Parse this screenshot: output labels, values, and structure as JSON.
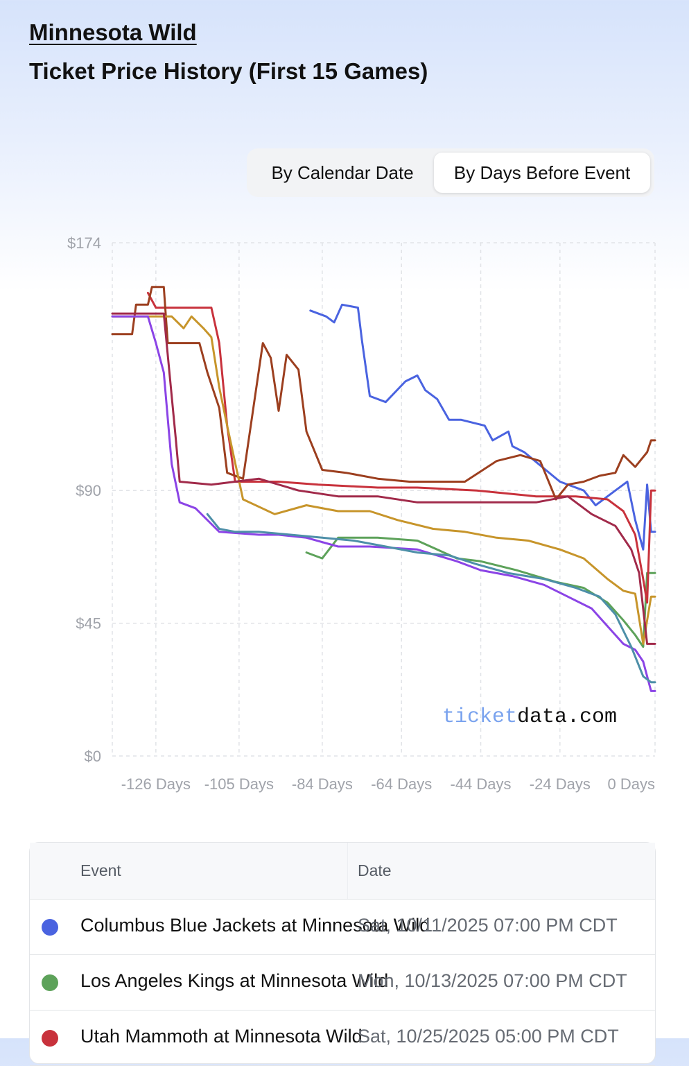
{
  "header": {
    "team_name": "Minnesota Wild",
    "title": "Ticket Price History (First 15 Games)"
  },
  "toggle": {
    "options": [
      "By Calendar Date",
      "By Days Before Event"
    ],
    "selected": "By Days Before Event"
  },
  "watermark": {
    "part1": "ticket",
    "part2": "data.com"
  },
  "chart_data": {
    "type": "line",
    "xlabel": "",
    "ylabel": "",
    "x_unit": "days before event",
    "xlim": [
      -137,
      0
    ],
    "ylim": [
      0,
      174
    ],
    "y_ticks": [
      {
        "value": 174,
        "label": "$174"
      },
      {
        "value": 90,
        "label": "$90"
      },
      {
        "value": 45,
        "label": "$45"
      },
      {
        "value": 0,
        "label": "$0"
      }
    ],
    "x_ticks": [
      {
        "value": -126,
        "label": "-126 Days"
      },
      {
        "value": -105,
        "label": "-105 Days"
      },
      {
        "value": -84,
        "label": "-84 Days"
      },
      {
        "value": -64,
        "label": "-64 Days"
      },
      {
        "value": -44,
        "label": "-44 Days"
      },
      {
        "value": -24,
        "label": "-24 Days"
      },
      {
        "value": 0,
        "label": "0 Days"
      }
    ],
    "grid": true,
    "series": [
      {
        "color": "#4a63e0",
        "points": [
          [
            -87,
            151
          ],
          [
            -83,
            149
          ],
          [
            -81,
            147
          ],
          [
            -79,
            153
          ],
          [
            -75,
            152
          ],
          [
            -74,
            141
          ],
          [
            -72,
            122
          ],
          [
            -68,
            120
          ],
          [
            -63,
            127
          ],
          [
            -60,
            129
          ],
          [
            -58,
            124
          ],
          [
            -55,
            121
          ],
          [
            -52,
            114
          ],
          [
            -49,
            114
          ],
          [
            -43,
            112
          ],
          [
            -41,
            107
          ],
          [
            -37,
            110
          ],
          [
            -36,
            105
          ],
          [
            -33,
            103
          ],
          [
            -24,
            93
          ],
          [
            -18,
            90
          ],
          [
            -15,
            85
          ],
          [
            -10,
            90
          ],
          [
            -7,
            93
          ],
          [
            -5,
            80
          ],
          [
            -3,
            70
          ],
          [
            -2,
            92
          ],
          [
            -1,
            76
          ],
          [
            0,
            76
          ]
        ]
      },
      {
        "color": "#5da25a",
        "points": [
          [
            -88,
            69
          ],
          [
            -84,
            67
          ],
          [
            -80,
            74
          ],
          [
            -70,
            74
          ],
          [
            -60,
            73
          ],
          [
            -50,
            67
          ],
          [
            -44,
            66
          ],
          [
            -35,
            63
          ],
          [
            -25,
            59
          ],
          [
            -18,
            57
          ],
          [
            -12,
            52
          ],
          [
            -8,
            46
          ],
          [
            -5,
            41
          ],
          [
            -3,
            37
          ],
          [
            -2,
            62
          ],
          [
            0,
            62
          ]
        ]
      },
      {
        "color": "#c8323c",
        "points": [
          [
            -128,
            157
          ],
          [
            -126,
            152
          ],
          [
            -112,
            152
          ],
          [
            -110,
            140
          ],
          [
            -108,
            112
          ],
          [
            -106,
            93
          ],
          [
            -95,
            93
          ],
          [
            -85,
            92
          ],
          [
            -70,
            91
          ],
          [
            -60,
            91
          ],
          [
            -45,
            90
          ],
          [
            -30,
            88
          ],
          [
            -20,
            88
          ],
          [
            -12,
            87
          ],
          [
            -8,
            83
          ],
          [
            -5,
            75
          ],
          [
            -3,
            60
          ],
          [
            -2,
            52
          ],
          [
            -1,
            90
          ],
          [
            0,
            90
          ]
        ]
      },
      {
        "color": "#9c3f1f",
        "points": [
          [
            -137,
            143
          ],
          [
            -132,
            143
          ],
          [
            -131,
            153
          ],
          [
            -128,
            153
          ],
          [
            -127,
            159
          ],
          [
            -124,
            159
          ],
          [
            -123,
            140
          ],
          [
            -120,
            140
          ],
          [
            -115,
            140
          ],
          [
            -113,
            130
          ],
          [
            -110,
            118
          ],
          [
            -108,
            96
          ],
          [
            -104,
            94
          ],
          [
            -99,
            140
          ],
          [
            -97,
            135
          ],
          [
            -95,
            117
          ],
          [
            -93,
            136
          ],
          [
            -90,
            131
          ],
          [
            -88,
            110
          ],
          [
            -84,
            97
          ],
          [
            -78,
            96
          ],
          [
            -70,
            94
          ],
          [
            -62,
            93
          ],
          [
            -56,
            93
          ],
          [
            -48,
            93
          ],
          [
            -40,
            100
          ],
          [
            -34,
            102
          ],
          [
            -29,
            100
          ],
          [
            -25,
            87
          ],
          [
            -22,
            92
          ],
          [
            -18,
            93
          ],
          [
            -14,
            95
          ],
          [
            -10,
            96
          ],
          [
            -8,
            102
          ],
          [
            -5,
            98
          ],
          [
            -2,
            103
          ],
          [
            -1,
            107
          ],
          [
            0,
            107
          ]
        ]
      },
      {
        "color": "#c7952b",
        "points": [
          [
            -137,
            149
          ],
          [
            -122,
            149
          ],
          [
            -119,
            145
          ],
          [
            -117,
            149
          ],
          [
            -114,
            145
          ],
          [
            -112,
            142
          ],
          [
            -110,
            125
          ],
          [
            -108,
            112
          ],
          [
            -104,
            87
          ],
          [
            -96,
            82
          ],
          [
            -88,
            85
          ],
          [
            -80,
            83
          ],
          [
            -72,
            83
          ],
          [
            -65,
            80
          ],
          [
            -56,
            77
          ],
          [
            -48,
            76
          ],
          [
            -40,
            74
          ],
          [
            -32,
            73
          ],
          [
            -24,
            70
          ],
          [
            -18,
            67
          ],
          [
            -12,
            60
          ],
          [
            -8,
            56
          ],
          [
            -5,
            55
          ],
          [
            -3,
            38
          ],
          [
            -1,
            54
          ],
          [
            0,
            54
          ]
        ]
      },
      {
        "color": "#8b44e6",
        "points": [
          [
            -137,
            149
          ],
          [
            -128,
            149
          ],
          [
            -126,
            140
          ],
          [
            -124,
            130
          ],
          [
            -122,
            99
          ],
          [
            -120,
            86
          ],
          [
            -116,
            84
          ],
          [
            -110,
            76
          ],
          [
            -100,
            75
          ],
          [
            -95,
            75
          ],
          [
            -88,
            74
          ],
          [
            -80,
            71
          ],
          [
            -72,
            71
          ],
          [
            -60,
            70
          ],
          [
            -50,
            66
          ],
          [
            -44,
            63
          ],
          [
            -36,
            61
          ],
          [
            -28,
            58
          ],
          [
            -22,
            54
          ],
          [
            -16,
            50
          ],
          [
            -12,
            44
          ],
          [
            -8,
            38
          ],
          [
            -5,
            36
          ],
          [
            -3,
            32
          ],
          [
            -1,
            22
          ],
          [
            0,
            22
          ]
        ]
      },
      {
        "color": "#4d8fa8",
        "points": [
          [
            -113,
            82
          ],
          [
            -110,
            77
          ],
          [
            -106,
            76
          ],
          [
            -100,
            76
          ],
          [
            -92,
            75
          ],
          [
            -84,
            74
          ],
          [
            -76,
            73
          ],
          [
            -68,
            71
          ],
          [
            -60,
            69
          ],
          [
            -52,
            68
          ],
          [
            -45,
            65
          ],
          [
            -37,
            62
          ],
          [
            -28,
            60
          ],
          [
            -20,
            57
          ],
          [
            -14,
            54
          ],
          [
            -10,
            48
          ],
          [
            -6,
            37
          ],
          [
            -3,
            27
          ],
          [
            -1,
            25
          ],
          [
            0,
            25
          ]
        ]
      },
      {
        "color": "#a12a4a",
        "points": [
          [
            -137,
            150
          ],
          [
            -124,
            150
          ],
          [
            -121,
            108
          ],
          [
            -120,
            93
          ],
          [
            -112,
            92
          ],
          [
            -100,
            94
          ],
          [
            -90,
            90
          ],
          [
            -80,
            88
          ],
          [
            -70,
            88
          ],
          [
            -60,
            86
          ],
          [
            -50,
            86
          ],
          [
            -40,
            86
          ],
          [
            -30,
            86
          ],
          [
            -22,
            88
          ],
          [
            -16,
            82
          ],
          [
            -10,
            78
          ],
          [
            -6,
            70
          ],
          [
            -4,
            62
          ],
          [
            -2,
            38
          ],
          [
            0,
            38
          ]
        ]
      }
    ]
  },
  "table": {
    "columns": [
      "Event",
      "Date"
    ],
    "rows": [
      {
        "color": "#4a63e0",
        "event": "Columbus Blue Jackets at Minnesota Wild",
        "date": "Sat, 10/11/2025 07:00 PM CDT"
      },
      {
        "color": "#5da25a",
        "event": "Los Angeles Kings at Minnesota Wild",
        "date": "Mon, 10/13/2025 07:00 PM CDT"
      },
      {
        "color": "#c8323c",
        "event": "Utah Mammoth at Minnesota Wild",
        "date": "Sat, 10/25/2025 05:00 PM CDT"
      }
    ]
  }
}
